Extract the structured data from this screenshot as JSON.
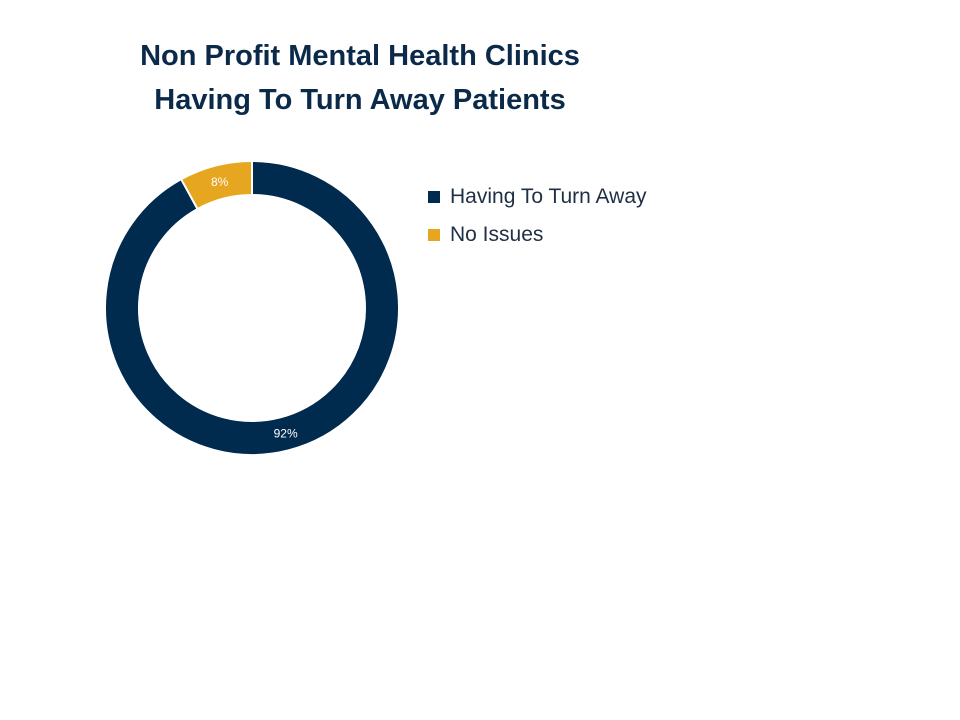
{
  "chart_data": {
    "type": "pie",
    "variant": "donut",
    "title": [
      "Non Profit Mental Health Clinics",
      "Having To Turn Away Patients"
    ],
    "series": [
      {
        "name": "Having To Turn Away",
        "value": 92,
        "label": "92%",
        "color": "#002a4e"
      },
      {
        "name": "No Issues",
        "value": 8,
        "label": "8%",
        "color": "#e6a620"
      }
    ],
    "legend_position": "right"
  }
}
